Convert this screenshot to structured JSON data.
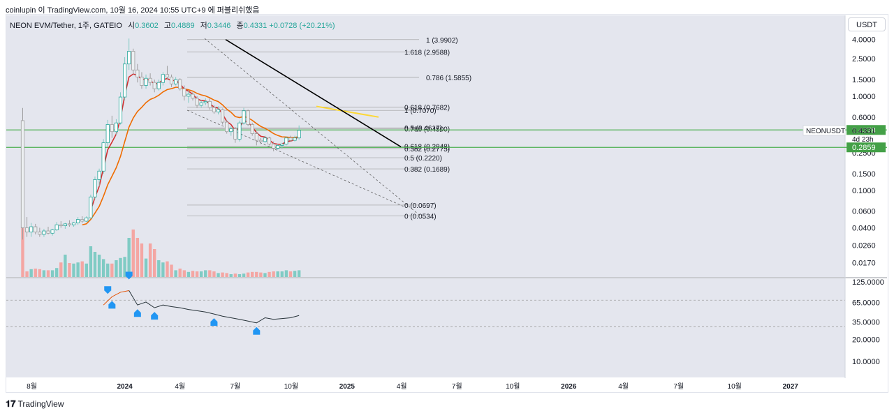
{
  "header": {
    "attribution": "coinlupin 이 TradingView.com, 10월 16, 2024 10:55 UTC+9 에 퍼블리쉬했음"
  },
  "legend": {
    "symbol": "NEON EVM/Tether, 1주, GATEIO",
    "open_label": "시",
    "open": "0.3602",
    "high_label": "고",
    "high": "0.4889",
    "low_label": "저",
    "low": "0.3446",
    "close_label": "종",
    "close": "0.4331",
    "change": "+0.0728 (+20.21%)"
  },
  "currency_button": "USDT",
  "footer": {
    "brand": "TradingView"
  },
  "colors": {
    "up": "#26a69a",
    "down": "#ef5350",
    "ema_fast": "#d32f2f",
    "ema_slow": "#ef6c00",
    "trend": "#000000",
    "resistance": "#fdd835",
    "level": "#4caf50"
  },
  "chart_data": {
    "type": "candlestick",
    "scale": "log",
    "ylim": [
      0.012,
      4.8
    ],
    "x_ticks": [
      "8월",
      "2024",
      "4월",
      "7월",
      "10월",
      "2025",
      "4월",
      "7월",
      "10월",
      "2026",
      "4월",
      "7월",
      "10월",
      "2027"
    ],
    "x_tick_dates": [
      "2023-08-01",
      "2024-01-01",
      "2024-04-01",
      "2024-07-01",
      "2024-10-01",
      "2025-01-01",
      "2025-04-01",
      "2025-07-01",
      "2025-10-01",
      "2026-01-01",
      "2026-04-01",
      "2026-07-01",
      "2026-10-01",
      "2027-01-01"
    ],
    "y_ticks": [
      "4.0000",
      "2.5000",
      "1.5000",
      "1.0000",
      "0.6000",
      "0.4378",
      "0.4331",
      "0.2859",
      "0.2500",
      "0.1500",
      "0.1000",
      "0.0600",
      "0.0400",
      "0.0260",
      "0.0170"
    ],
    "price_badges": [
      {
        "value": "0.4378",
        "price": 0.4378,
        "color": "#43a047"
      },
      {
        "value": "0.2859",
        "price": 0.2859,
        "color": "#43a047"
      }
    ],
    "last_price": {
      "label": "NEONUSDT",
      "value": "0.4331",
      "countdown": "4d 23h",
      "price": 0.4331
    },
    "horizontal_levels": [
      0.4378,
      0.2859
    ],
    "fib_labels": [
      {
        "text": "1 (3.9902)",
        "price": 3.9902
      },
      {
        "text": "1.618 (2.9588)",
        "price": 2.9588
      },
      {
        "text": "0.786 (1.5855)",
        "price": 1.5855
      },
      {
        "text": "0.618 (0.7682)",
        "price": 0.7682
      },
      {
        "text": "1 (0.7070)",
        "price": 0.707
      },
      {
        "text": "0.5 (0.4617)",
        "price": 0.4617
      },
      {
        "text": "0.786 (0.4500)",
        "price": 0.45
      },
      {
        "text": "0.382 (0.2775)",
        "price": 0.2775
      },
      {
        "text": "0.618 (0.2948)",
        "price": 0.2948
      },
      {
        "text": "0.5 (0.2220)",
        "price": 0.222
      },
      {
        "text": "0.382 (0.1689)",
        "price": 0.1689
      },
      {
        "text": "0 (0.0697)",
        "price": 0.0697
      },
      {
        "text": "0 (0.0534)",
        "price": 0.0534
      }
    ],
    "candles": [
      {
        "date": "2023-07-17",
        "o": 0.55,
        "h": 0.75,
        "l": 0.03,
        "c": 0.04
      },
      {
        "date": "2023-07-24",
        "o": 0.04,
        "h": 0.052,
        "l": 0.032,
        "c": 0.036
      },
      {
        "date": "2023-07-31",
        "o": 0.036,
        "h": 0.045,
        "l": 0.032,
        "c": 0.041
      },
      {
        "date": "2023-08-07",
        "o": 0.041,
        "h": 0.044,
        "l": 0.034,
        "c": 0.036
      },
      {
        "date": "2023-08-14",
        "o": 0.036,
        "h": 0.04,
        "l": 0.032,
        "c": 0.034
      },
      {
        "date": "2023-08-21",
        "o": 0.034,
        "h": 0.039,
        "l": 0.032,
        "c": 0.037
      },
      {
        "date": "2023-08-28",
        "o": 0.037,
        "h": 0.041,
        "l": 0.034,
        "c": 0.035
      },
      {
        "date": "2023-09-04",
        "o": 0.035,
        "h": 0.039,
        "l": 0.033,
        "c": 0.038
      },
      {
        "date": "2023-09-11",
        "o": 0.038,
        "h": 0.046,
        "l": 0.037,
        "c": 0.043
      },
      {
        "date": "2023-09-18",
        "o": 0.043,
        "h": 0.047,
        "l": 0.04,
        "c": 0.042
      },
      {
        "date": "2023-09-25",
        "o": 0.042,
        "h": 0.045,
        "l": 0.039,
        "c": 0.044
      },
      {
        "date": "2023-10-02",
        "o": 0.044,
        "h": 0.048,
        "l": 0.041,
        "c": 0.043
      },
      {
        "date": "2023-10-09",
        "o": 0.043,
        "h": 0.046,
        "l": 0.041,
        "c": 0.045
      },
      {
        "date": "2023-10-16",
        "o": 0.045,
        "h": 0.052,
        "l": 0.043,
        "c": 0.049
      },
      {
        "date": "2023-10-23",
        "o": 0.049,
        "h": 0.053,
        "l": 0.045,
        "c": 0.047
      },
      {
        "date": "2023-10-30",
        "o": 0.047,
        "h": 0.053,
        "l": 0.046,
        "c": 0.051
      },
      {
        "date": "2023-11-06",
        "o": 0.051,
        "h": 0.09,
        "l": 0.05,
        "c": 0.085
      },
      {
        "date": "2023-11-13",
        "o": 0.085,
        "h": 0.14,
        "l": 0.08,
        "c": 0.13
      },
      {
        "date": "2023-11-20",
        "o": 0.13,
        "h": 0.17,
        "l": 0.11,
        "c": 0.16
      },
      {
        "date": "2023-11-27",
        "o": 0.16,
        "h": 0.35,
        "l": 0.15,
        "c": 0.32
      },
      {
        "date": "2023-12-04",
        "o": 0.32,
        "h": 0.56,
        "l": 0.29,
        "c": 0.5
      },
      {
        "date": "2023-12-11",
        "o": 0.5,
        "h": 0.62,
        "l": 0.36,
        "c": 0.42
      },
      {
        "date": "2023-12-18",
        "o": 0.42,
        "h": 0.57,
        "l": 0.39,
        "c": 0.52
      },
      {
        "date": "2023-12-25",
        "o": 0.52,
        "h": 1.1,
        "l": 0.5,
        "c": 0.98
      },
      {
        "date": "2024-01-01",
        "o": 0.98,
        "h": 2.6,
        "l": 0.9,
        "c": 2.2
      },
      {
        "date": "2024-01-08",
        "o": 2.2,
        "h": 4.1,
        "l": 1.9,
        "c": 3.0
      },
      {
        "date": "2024-01-15",
        "o": 3.0,
        "h": 3.2,
        "l": 1.7,
        "c": 1.9
      },
      {
        "date": "2024-01-22",
        "o": 1.9,
        "h": 2.2,
        "l": 1.4,
        "c": 1.6
      },
      {
        "date": "2024-01-29",
        "o": 1.6,
        "h": 1.8,
        "l": 1.2,
        "c": 1.3
      },
      {
        "date": "2024-02-05",
        "o": 1.3,
        "h": 1.7,
        "l": 1.2,
        "c": 1.55
      },
      {
        "date": "2024-02-12",
        "o": 1.55,
        "h": 1.75,
        "l": 1.3,
        "c": 1.4
      },
      {
        "date": "2024-02-19",
        "o": 1.4,
        "h": 1.5,
        "l": 1.1,
        "c": 1.2
      },
      {
        "date": "2024-02-26",
        "o": 1.2,
        "h": 1.5,
        "l": 1.15,
        "c": 1.4
      },
      {
        "date": "2024-03-04",
        "o": 1.4,
        "h": 1.8,
        "l": 1.3,
        "c": 1.7
      },
      {
        "date": "2024-03-11",
        "o": 1.7,
        "h": 2.1,
        "l": 1.5,
        "c": 1.6
      },
      {
        "date": "2024-03-18",
        "o": 1.6,
        "h": 1.7,
        "l": 1.25,
        "c": 1.35
      },
      {
        "date": "2024-03-25",
        "o": 1.35,
        "h": 1.6,
        "l": 1.3,
        "c": 1.5
      },
      {
        "date": "2024-04-01",
        "o": 1.5,
        "h": 1.55,
        "l": 1.15,
        "c": 1.2
      },
      {
        "date": "2024-04-08",
        "o": 1.2,
        "h": 1.3,
        "l": 0.9,
        "c": 1.0
      },
      {
        "date": "2024-04-15",
        "o": 1.0,
        "h": 1.15,
        "l": 0.85,
        "c": 1.05
      },
      {
        "date": "2024-04-22",
        "o": 1.05,
        "h": 1.1,
        "l": 0.9,
        "c": 0.95
      },
      {
        "date": "2024-04-29",
        "o": 0.95,
        "h": 1.0,
        "l": 0.75,
        "c": 0.8
      },
      {
        "date": "2024-05-06",
        "o": 0.8,
        "h": 0.9,
        "l": 0.75,
        "c": 0.85
      },
      {
        "date": "2024-05-13",
        "o": 0.85,
        "h": 0.95,
        "l": 0.8,
        "c": 0.88
      },
      {
        "date": "2024-05-20",
        "o": 0.88,
        "h": 0.95,
        "l": 0.72,
        "c": 0.76
      },
      {
        "date": "2024-05-27",
        "o": 0.76,
        "h": 0.8,
        "l": 0.65,
        "c": 0.68
      },
      {
        "date": "2024-06-03",
        "o": 0.68,
        "h": 0.78,
        "l": 0.64,
        "c": 0.72
      },
      {
        "date": "2024-06-10",
        "o": 0.72,
        "h": 0.74,
        "l": 0.5,
        "c": 0.53
      },
      {
        "date": "2024-06-17",
        "o": 0.53,
        "h": 0.56,
        "l": 0.4,
        "c": 0.42
      },
      {
        "date": "2024-06-24",
        "o": 0.42,
        "h": 0.48,
        "l": 0.38,
        "c": 0.45
      },
      {
        "date": "2024-07-01",
        "o": 0.45,
        "h": 0.47,
        "l": 0.32,
        "c": 0.35
      },
      {
        "date": "2024-07-08",
        "o": 0.35,
        "h": 0.55,
        "l": 0.33,
        "c": 0.52
      },
      {
        "date": "2024-07-15",
        "o": 0.52,
        "h": 0.75,
        "l": 0.5,
        "c": 0.7
      },
      {
        "date": "2024-07-22",
        "o": 0.7,
        "h": 0.72,
        "l": 0.48,
        "c": 0.5
      },
      {
        "date": "2024-07-29",
        "o": 0.5,
        "h": 0.52,
        "l": 0.38,
        "c": 0.4
      },
      {
        "date": "2024-08-05",
        "o": 0.4,
        "h": 0.42,
        "l": 0.3,
        "c": 0.34
      },
      {
        "date": "2024-08-12",
        "o": 0.34,
        "h": 0.36,
        "l": 0.31,
        "c": 0.33
      },
      {
        "date": "2024-08-19",
        "o": 0.33,
        "h": 0.38,
        "l": 0.32,
        "c": 0.36
      },
      {
        "date": "2024-08-26",
        "o": 0.36,
        "h": 0.37,
        "l": 0.3,
        "c": 0.31
      },
      {
        "date": "2024-09-02",
        "o": 0.31,
        "h": 0.33,
        "l": 0.26,
        "c": 0.28
      },
      {
        "date": "2024-09-09",
        "o": 0.28,
        "h": 0.31,
        "l": 0.27,
        "c": 0.3
      },
      {
        "date": "2024-09-16",
        "o": 0.3,
        "h": 0.32,
        "l": 0.28,
        "c": 0.31
      },
      {
        "date": "2024-09-23",
        "o": 0.31,
        "h": 0.37,
        "l": 0.3,
        "c": 0.36
      },
      {
        "date": "2024-09-30",
        "o": 0.36,
        "h": 0.38,
        "l": 0.33,
        "c": 0.34
      },
      {
        "date": "2024-10-07",
        "o": 0.34,
        "h": 0.38,
        "l": 0.33,
        "c": 0.36
      },
      {
        "date": "2024-10-14",
        "o": 0.3602,
        "h": 0.4889,
        "l": 0.3446,
        "c": 0.4331
      }
    ],
    "volume_up_ratio": [
      0.1,
      0.12,
      0.14,
      0.18,
      0.16,
      0.12,
      0.14,
      0.12,
      0.16,
      0.3,
      0.4,
      0.28,
      0.24,
      0.26,
      0.3,
      0.24,
      0.55,
      0.45,
      0.4,
      0.32,
      0.24,
      0.26,
      0.3,
      0.34,
      0.36,
      0.7,
      0.4,
      0.35,
      0.3,
      0.33,
      0.45,
      0.38,
      0.3,
      0.26,
      0.2,
      0.15,
      0.12,
      0.1,
      0.08,
      0.09,
      0.08,
      0.08,
      0.1,
      0.12,
      0.1,
      0.08,
      0.07,
      0.06,
      0.06,
      0.05,
      0.05,
      0.05,
      0.06,
      0.07,
      0.08,
      0.08,
      0.07,
      0.07,
      0.08,
      0.09,
      0.1,
      0.1,
      0.12,
      0.1,
      0.11,
      0.12,
      0.12
    ],
    "volume_down_ratio": [
      0.9,
      0.1,
      0.12,
      0.15,
      0.14,
      0.1,
      0.12,
      0.1,
      0.14,
      0.26,
      0.35,
      0.25,
      0.22,
      0.24,
      0.28,
      0.22,
      0.5,
      0.4,
      0.38,
      0.3,
      0.22,
      0.24,
      0.28,
      0.31,
      0.34,
      0.95,
      0.85,
      0.7,
      0.6,
      0.55,
      0.6,
      0.5,
      0.4,
      0.35,
      0.28,
      0.22,
      0.18,
      0.15,
      0.12,
      0.12,
      0.11,
      0.1,
      0.12,
      0.14,
      0.12,
      0.1,
      0.09,
      0.08,
      0.07,
      0.07,
      0.06,
      0.06,
      0.07,
      0.08,
      0.09,
      0.09,
      0.08,
      0.08,
      0.09,
      0.1,
      0.11,
      0.1,
      0.11,
      0.1,
      0.1,
      0.1,
      0.1
    ],
    "indicator": {
      "y_ticks": [
        "125.0000",
        "65.0000",
        "35.0000",
        "20.0000",
        "10.0000"
      ],
      "ylim": [
        6,
        140
      ],
      "levels": [
        70,
        30
      ],
      "line": [
        {
          "date": "2023-11-27",
          "v": 60
        },
        {
          "date": "2023-12-11",
          "v": 78
        },
        {
          "date": "2023-12-25",
          "v": 90
        },
        {
          "date": "2024-01-08",
          "v": 95
        },
        {
          "date": "2024-01-22",
          "v": 60
        },
        {
          "date": "2024-02-05",
          "v": 66
        },
        {
          "date": "2024-02-19",
          "v": 55
        },
        {
          "date": "2024-03-04",
          "v": 60
        },
        {
          "date": "2024-03-18",
          "v": 57
        },
        {
          "date": "2024-04-01",
          "v": 55
        },
        {
          "date": "2024-04-15",
          "v": 52
        },
        {
          "date": "2024-04-29",
          "v": 50
        },
        {
          "date": "2024-05-13",
          "v": 48
        },
        {
          "date": "2024-05-27",
          "v": 45
        },
        {
          "date": "2024-06-10",
          "v": 42
        },
        {
          "date": "2024-06-24",
          "v": 40
        },
        {
          "date": "2024-07-08",
          "v": 38
        },
        {
          "date": "2024-07-22",
          "v": 36
        },
        {
          "date": "2024-08-05",
          "v": 34
        },
        {
          "date": "2024-08-19",
          "v": 40
        },
        {
          "date": "2024-09-02",
          "v": 38
        },
        {
          "date": "2024-09-16",
          "v": 39
        },
        {
          "date": "2024-09-30",
          "v": 40
        },
        {
          "date": "2024-10-14",
          "v": 43
        }
      ],
      "bull_markers": [
        "2023-12-11",
        "2024-01-22",
        "2024-02-19",
        "2024-05-27",
        "2024-08-05"
      ],
      "bear_markers": [
        "2023-12-04",
        "2024-01-08"
      ]
    }
  }
}
